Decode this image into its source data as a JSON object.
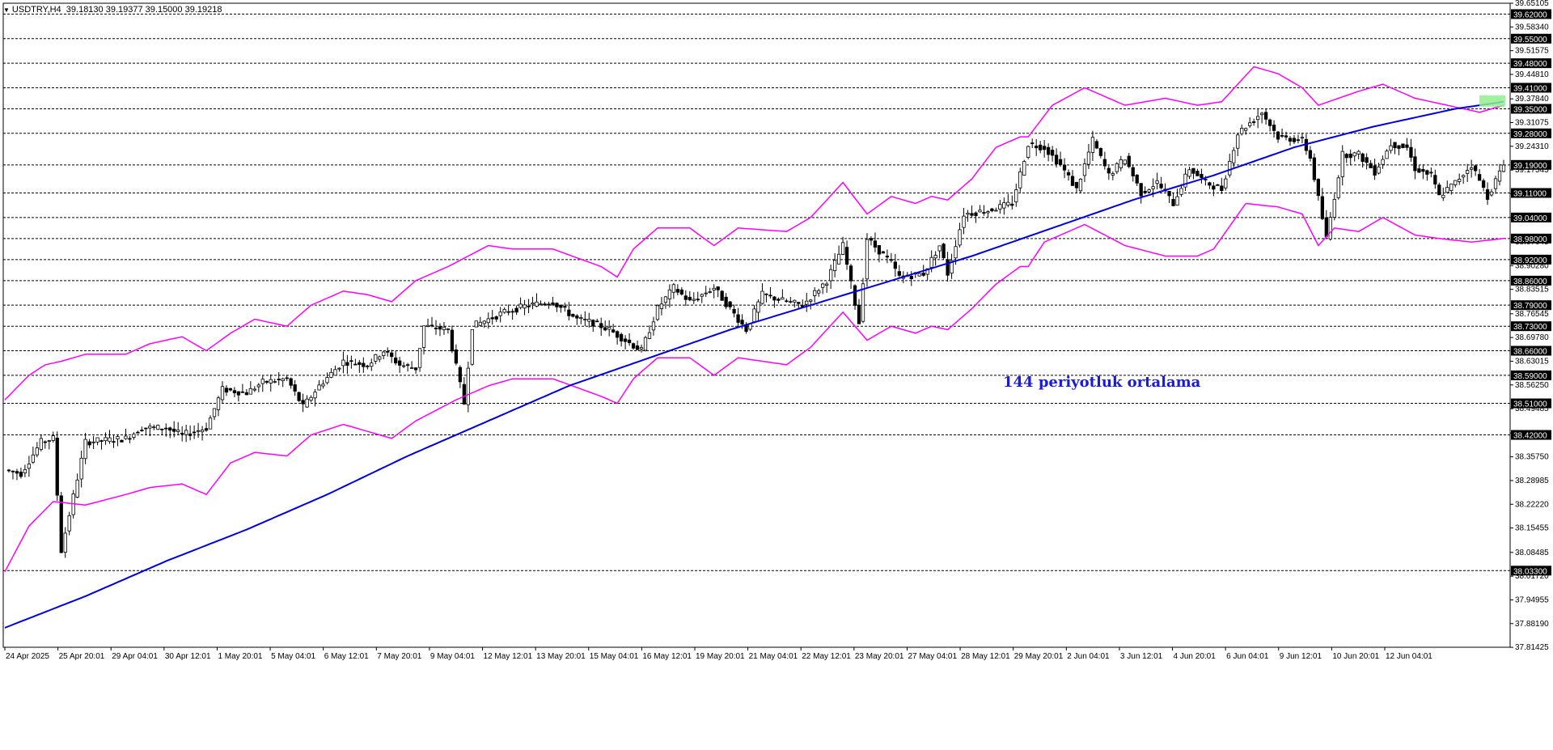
{
  "header": {
    "symbol": "USDTRY,H4",
    "ohlc": "39.18130 39.19377 39.15000 39.19218"
  },
  "annotation": "144 periyotluk ortalama",
  "colors": {
    "background": "#ffffff",
    "candle": "#000000",
    "envelope": "#ff00ff",
    "ma": "#0000dd",
    "highlight": "#90ee90"
  },
  "chart_data": {
    "type": "candlestick",
    "price_range": [
      37.8145,
      39.651
    ],
    "price_ticks": [
      "39.65105",
      "39.58340",
      "39.51575",
      "39.44810",
      "39.37840",
      "39.31075",
      "39.24310",
      "39.17545",
      "39.10780",
      "39.04015",
      "38.97045",
      "38.90280",
      "38.83515",
      "38.76545",
      "38.69780",
      "38.63015",
      "38.56250",
      "38.49485",
      "38.42510",
      "38.35750",
      "38.28985",
      "38.22220",
      "38.15455",
      "38.08485",
      "38.01720",
      "37.94955",
      "37.88190",
      "37.81425"
    ],
    "levels": [
      "39.62000",
      "39.55000",
      "39.48000",
      "39.41000",
      "39.35000",
      "39.28000",
      "39.19000",
      "39.11000",
      "39.04000",
      "38.98000",
      "38.92000",
      "38.86000",
      "38.79000",
      "38.73000",
      "38.66000",
      "38.59000",
      "38.51000",
      "38.42000",
      "38.03300"
    ],
    "time_labels": [
      "24 Apr 2025",
      "25 Apr 20:01",
      "29 Apr 04:01",
      "30 Apr 12:01",
      "1 May 20:01",
      "5 May 04:01",
      "6 May 12:01",
      "7 May 20:01",
      "9 May 04:01",
      "12 May 12:01",
      "13 May 20:01",
      "15 May 04:01",
      "16 May 12:01",
      "19 May 20:01",
      "21 May 04:01",
      "22 May 12:01",
      "23 May 20:01",
      "27 May 04:01",
      "28 May 12:01",
      "29 May 20:01",
      "2 Jun 04:01",
      "3 Jun 12:01",
      "4 Jun 20:01",
      "6 Jun 04:01",
      "9 Jun 12:01",
      "10 Jun 20:01",
      "12 Jun 04:01"
    ],
    "series": [
      {
        "name": "Price",
        "style": "candlestick",
        "close_path": [
          [
            0,
            38.32
          ],
          [
            4,
            38.31
          ],
          [
            9,
            38.4
          ],
          [
            12,
            38.41
          ],
          [
            14,
            38.09
          ],
          [
            20,
            38.4
          ],
          [
            30,
            38.41
          ],
          [
            34,
            38.44
          ],
          [
            40,
            38.44
          ],
          [
            44,
            38.42
          ],
          [
            50,
            38.44
          ],
          [
            54,
            38.55
          ],
          [
            60,
            38.54
          ],
          [
            64,
            38.57
          ],
          [
            70,
            38.58
          ],
          [
            74,
            38.5
          ],
          [
            78,
            38.56
          ],
          [
            84,
            38.63
          ],
          [
            90,
            38.62
          ],
          [
            94,
            38.66
          ],
          [
            98,
            38.62
          ],
          [
            102,
            38.61
          ],
          [
            104,
            38.73
          ],
          [
            110,
            38.72
          ],
          [
            114,
            38.51
          ],
          [
            116,
            38.73
          ],
          [
            124,
            38.77
          ],
          [
            130,
            38.79
          ],
          [
            136,
            38.8
          ],
          [
            142,
            38.75
          ],
          [
            146,
            38.74
          ],
          [
            150,
            38.72
          ],
          [
            154,
            38.69
          ],
          [
            158,
            38.66
          ],
          [
            162,
            38.78
          ],
          [
            166,
            38.84
          ],
          [
            170,
            38.8
          ],
          [
            176,
            38.84
          ],
          [
            180,
            38.78
          ],
          [
            184,
            38.72
          ],
          [
            188,
            38.82
          ],
          [
            194,
            38.8
          ],
          [
            198,
            38.79
          ],
          [
            204,
            38.86
          ],
          [
            208,
            38.96
          ],
          [
            212,
            38.74
          ],
          [
            214,
            38.98
          ],
          [
            220,
            38.91
          ],
          [
            222,
            38.87
          ],
          [
            228,
            38.88
          ],
          [
            232,
            38.96
          ],
          [
            234,
            38.88
          ],
          [
            238,
            39.05
          ],
          [
            244,
            39.06
          ],
          [
            250,
            39.08
          ],
          [
            254,
            39.25
          ],
          [
            258,
            39.24
          ],
          [
            262,
            39.19
          ],
          [
            266,
            39.12
          ],
          [
            270,
            39.26
          ],
          [
            274,
            39.16
          ],
          [
            278,
            39.21
          ],
          [
            282,
            39.11
          ],
          [
            286,
            39.14
          ],
          [
            290,
            39.08
          ],
          [
            294,
            39.18
          ],
          [
            298,
            39.14
          ],
          [
            302,
            39.12
          ],
          [
            306,
            39.28
          ],
          [
            312,
            39.34
          ],
          [
            316,
            39.27
          ],
          [
            322,
            39.26
          ],
          [
            324,
            39.21
          ],
          [
            328,
            38.98
          ],
          [
            332,
            39.22
          ],
          [
            336,
            39.22
          ],
          [
            340,
            39.17
          ],
          [
            344,
            39.25
          ],
          [
            348,
            39.24
          ],
          [
            350,
            39.18
          ],
          [
            354,
            39.16
          ],
          [
            356,
            39.1
          ],
          [
            360,
            39.14
          ],
          [
            364,
            39.19
          ],
          [
            368,
            39.1
          ],
          [
            372,
            39.19
          ]
        ]
      },
      {
        "name": "Upper Envelope",
        "style": "line",
        "path": [
          [
            0,
            38.52
          ],
          [
            6,
            38.59
          ],
          [
            10,
            38.62
          ],
          [
            14,
            38.63
          ],
          [
            20,
            38.65
          ],
          [
            30,
            38.65
          ],
          [
            36,
            38.68
          ],
          [
            44,
            38.7
          ],
          [
            50,
            38.66
          ],
          [
            56,
            38.71
          ],
          [
            62,
            38.75
          ],
          [
            70,
            38.73
          ],
          [
            76,
            38.79
          ],
          [
            84,
            38.83
          ],
          [
            90,
            38.82
          ],
          [
            96,
            38.8
          ],
          [
            102,
            38.86
          ],
          [
            110,
            38.9
          ],
          [
            120,
            38.96
          ],
          [
            126,
            38.95
          ],
          [
            136,
            38.95
          ],
          [
            148,
            38.9
          ],
          [
            152,
            38.87
          ],
          [
            156,
            38.95
          ],
          [
            162,
            39.01
          ],
          [
            170,
            39.01
          ],
          [
            176,
            38.96
          ],
          [
            182,
            39.01
          ],
          [
            194,
            39.0
          ],
          [
            200,
            39.04
          ],
          [
            208,
            39.14
          ],
          [
            214,
            39.05
          ],
          [
            220,
            39.1
          ],
          [
            226,
            39.08
          ],
          [
            230,
            39.1
          ],
          [
            234,
            39.09
          ],
          [
            240,
            39.15
          ],
          [
            246,
            39.24
          ],
          [
            252,
            39.27
          ],
          [
            254,
            39.27
          ],
          [
            260,
            39.36
          ],
          [
            268,
            39.41
          ],
          [
            278,
            39.36
          ],
          [
            288,
            39.38
          ],
          [
            296,
            39.36
          ],
          [
            302,
            39.37
          ],
          [
            310,
            39.47
          ],
          [
            316,
            39.45
          ],
          [
            322,
            39.41
          ],
          [
            326,
            39.36
          ],
          [
            336,
            39.4
          ],
          [
            342,
            39.42
          ],
          [
            350,
            39.38
          ],
          [
            358,
            39.36
          ],
          [
            366,
            39.34
          ],
          [
            372,
            39.36
          ]
        ]
      },
      {
        "name": "Lower Envelope",
        "style": "line",
        "path": [
          [
            0,
            38.03
          ],
          [
            6,
            38.16
          ],
          [
            12,
            38.23
          ],
          [
            20,
            38.22
          ],
          [
            30,
            38.25
          ],
          [
            36,
            38.27
          ],
          [
            44,
            38.28
          ],
          [
            50,
            38.25
          ],
          [
            56,
            38.34
          ],
          [
            62,
            38.37
          ],
          [
            70,
            38.36
          ],
          [
            76,
            38.42
          ],
          [
            84,
            38.45
          ],
          [
            90,
            38.43
          ],
          [
            96,
            38.41
          ],
          [
            102,
            38.46
          ],
          [
            112,
            38.52
          ],
          [
            120,
            38.56
          ],
          [
            126,
            38.58
          ],
          [
            136,
            38.58
          ],
          [
            148,
            38.53
          ],
          [
            152,
            38.51
          ],
          [
            156,
            38.58
          ],
          [
            162,
            38.64
          ],
          [
            170,
            38.64
          ],
          [
            176,
            38.59
          ],
          [
            182,
            38.64
          ],
          [
            194,
            38.62
          ],
          [
            200,
            38.67
          ],
          [
            208,
            38.77
          ],
          [
            214,
            38.69
          ],
          [
            220,
            38.73
          ],
          [
            226,
            38.71
          ],
          [
            230,
            38.73
          ],
          [
            234,
            38.72
          ],
          [
            240,
            38.78
          ],
          [
            246,
            38.85
          ],
          [
            252,
            38.9
          ],
          [
            254,
            38.9
          ],
          [
            258,
            38.97
          ],
          [
            268,
            39.02
          ],
          [
            278,
            38.96
          ],
          [
            288,
            38.93
          ],
          [
            296,
            38.93
          ],
          [
            300,
            38.95
          ],
          [
            308,
            39.08
          ],
          [
            316,
            39.07
          ],
          [
            322,
            39.05
          ],
          [
            326,
            38.96
          ],
          [
            330,
            39.01
          ],
          [
            336,
            39.0
          ],
          [
            342,
            39.04
          ],
          [
            350,
            38.99
          ],
          [
            356,
            38.98
          ],
          [
            364,
            38.97
          ],
          [
            372,
            38.98
          ]
        ]
      },
      {
        "name": "144 MA",
        "style": "line",
        "path": [
          [
            0,
            37.87
          ],
          [
            20,
            37.96
          ],
          [
            40,
            38.06
          ],
          [
            60,
            38.15
          ],
          [
            80,
            38.25
          ],
          [
            100,
            38.36
          ],
          [
            120,
            38.46
          ],
          [
            140,
            38.56
          ],
          [
            160,
            38.64
          ],
          [
            180,
            38.72
          ],
          [
            200,
            38.79
          ],
          [
            220,
            38.86
          ],
          [
            240,
            38.93
          ],
          [
            260,
            39.01
          ],
          [
            280,
            39.09
          ],
          [
            300,
            39.16
          ],
          [
            320,
            39.24
          ],
          [
            340,
            39.3
          ],
          [
            360,
            39.35
          ],
          [
            372,
            39.37
          ]
        ]
      }
    ]
  }
}
